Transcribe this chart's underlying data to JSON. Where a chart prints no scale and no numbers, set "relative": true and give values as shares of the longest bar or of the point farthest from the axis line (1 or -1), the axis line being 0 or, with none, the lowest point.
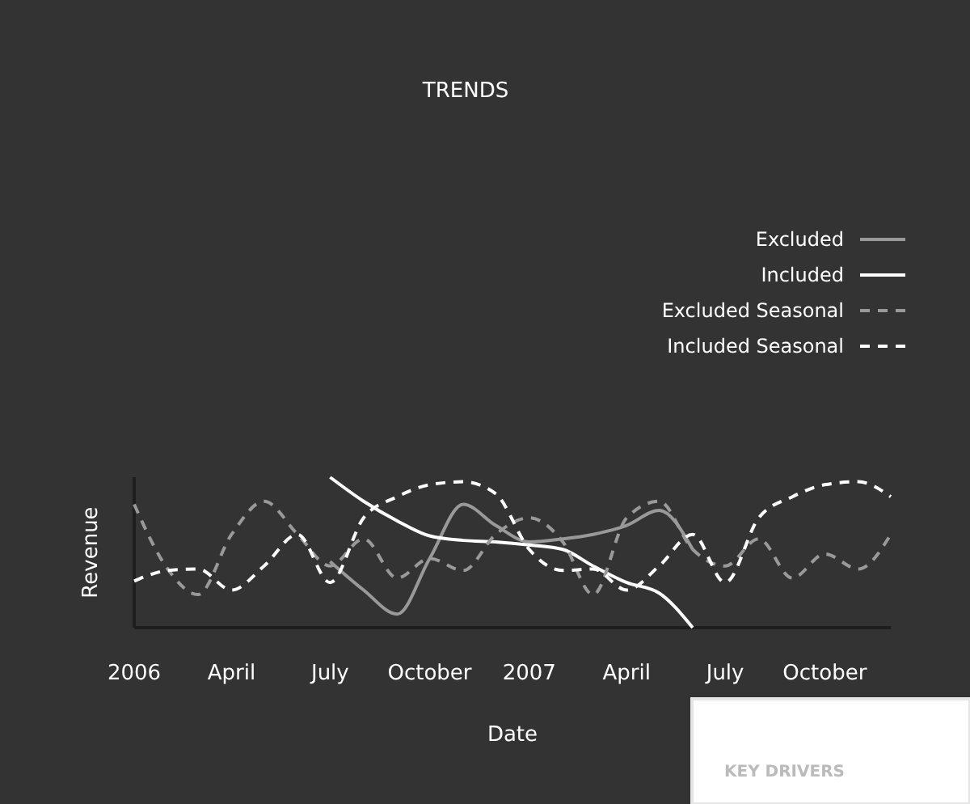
{
  "chart_data": {
    "type": "line",
    "title": "TRENDS",
    "xlabel": "Date",
    "ylabel": "Revenue",
    "relative": true,
    "legend": "top right",
    "x": [
      "2006-01",
      "2006-02",
      "2006-03",
      "2006-04",
      "2006-05",
      "2006-06",
      "2006-07",
      "2006-08",
      "2006-09",
      "2006-10",
      "2006-11",
      "2006-12",
      "2007-01",
      "2007-02",
      "2007-03",
      "2007-04",
      "2007-05",
      "2007-06",
      "2007-07",
      "2007-08",
      "2007-09",
      "2007-10",
      "2007-11",
      "2007-12"
    ],
    "xlim": [
      "2006-01",
      "2007-12"
    ],
    "xticks": [
      {
        "value": "2006-01",
        "label": "2006"
      },
      {
        "value": "2006-04",
        "label": "April"
      },
      {
        "value": "2006-07",
        "label": "July"
      },
      {
        "value": "2006-10",
        "label": "October"
      },
      {
        "value": "2007-01",
        "label": "2007"
      },
      {
        "value": "2007-04",
        "label": "April"
      },
      {
        "value": "2007-07",
        "label": "July"
      },
      {
        "value": "2007-10",
        "label": "October"
      }
    ],
    "series": [
      {
        "name": "Excluded",
        "color": "#999999",
        "line_style": "solid",
        "values": [
          null,
          null,
          null,
          null,
          null,
          null,
          0.44,
          0.25,
          0.09,
          0.46,
          0.82,
          0.68,
          0.57,
          0.59,
          0.62,
          0.68,
          0.78,
          0.52,
          null,
          null,
          null,
          null,
          null,
          null
        ]
      },
      {
        "name": "Included",
        "color": "#ffffff",
        "line_style": "solid",
        "values": [
          null,
          null,
          null,
          null,
          null,
          null,
          1,
          0.84,
          0.71,
          0.61,
          0.58,
          0.57,
          0.55,
          0.52,
          0.41,
          0.3,
          0.23,
          0,
          null,
          null,
          null,
          null,
          null,
          null
        ]
      },
      {
        "name": "Excluded Seasonal",
        "color": "#999999",
        "line_style": "dashed",
        "values": [
          0.82,
          0.39,
          0.22,
          0.62,
          0.84,
          0.62,
          0.41,
          0.59,
          0.33,
          0.46,
          0.38,
          0.62,
          0.73,
          0.57,
          0.22,
          0.73,
          0.84,
          0.52,
          0.41,
          0.59,
          0.33,
          0.49,
          0.39,
          0.62
        ]
      },
      {
        "name": "Included Seasonal",
        "color": "#ffffff",
        "line_style": "dashed",
        "values": [
          0.31,
          0.38,
          0.39,
          0.25,
          0.41,
          0.62,
          0.3,
          0.73,
          0.87,
          0.95,
          0.97,
          0.89,
          0.52,
          0.38,
          0.39,
          0.25,
          0.41,
          0.62,
          0.3,
          0.73,
          0.87,
          0.95,
          0.97,
          0.87
        ]
      }
    ],
    "annotations": [
      "KEY DRIVERS"
    ]
  }
}
